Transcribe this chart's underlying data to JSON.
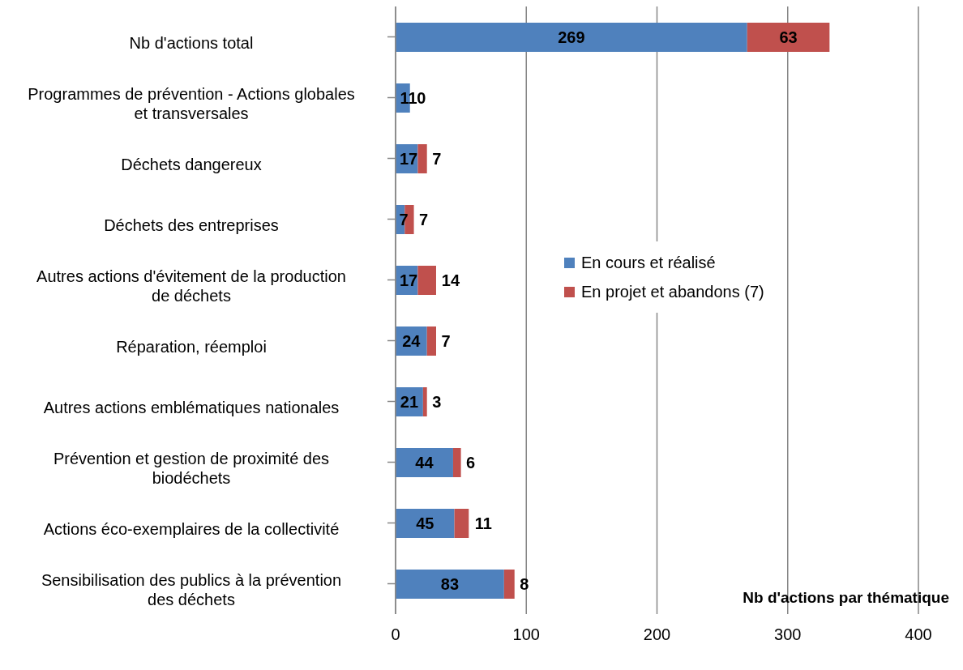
{
  "chart_data": {
    "type": "bar",
    "orientation": "horizontal",
    "stacked": true,
    "xlabel": "Nb d'actions par thématique",
    "categories": [
      "Nb d'actions total",
      "Programmes de prévention - Actions globales et transversales",
      "Déchets dangereux",
      "Déchets des entreprises",
      "Autres actions d'évitement de la production de déchets",
      "Réparation, réemploi",
      "Autres actions emblématiques nationales",
      "Prévention et gestion de proximité des biodéchets",
      "Actions éco-exemplaires de la collectivité",
      "Sensibilisation des publics à la prévention des déchets"
    ],
    "series": [
      {
        "name": "En cours et réalisé",
        "color": "#4f81bd",
        "values": [
          269,
          11,
          17,
          7,
          17,
          24,
          21,
          44,
          45,
          83
        ]
      },
      {
        "name": "En projet et abandons (7)",
        "color": "#c0504d",
        "values": [
          63,
          0,
          7,
          7,
          14,
          7,
          3,
          6,
          11,
          8
        ]
      }
    ],
    "xlim": [
      0,
      400
    ],
    "xticks": [
      0,
      100,
      200,
      300,
      400
    ],
    "grid": "x",
    "legend": "right",
    "data_labels": true
  }
}
